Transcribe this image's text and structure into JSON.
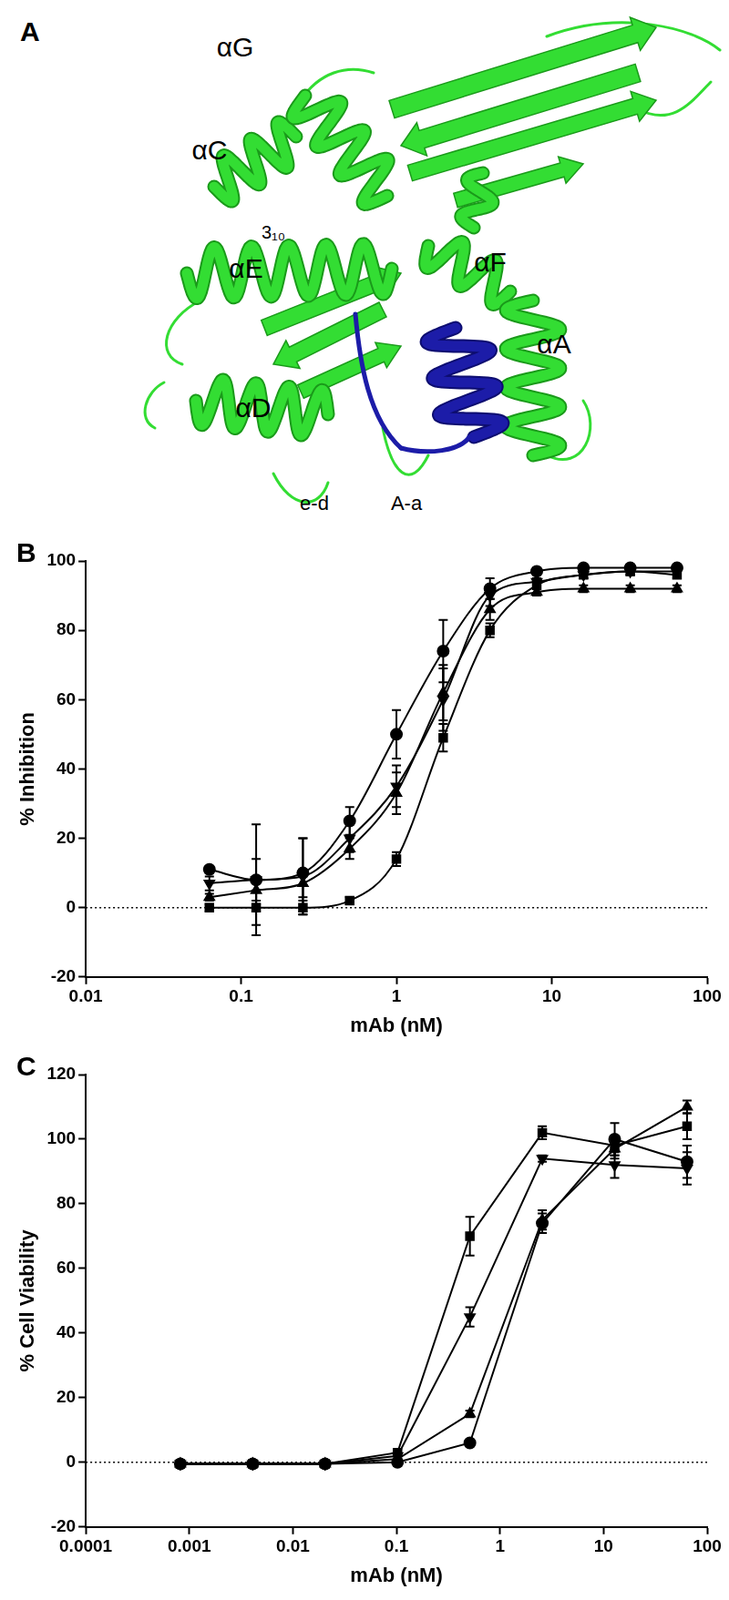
{
  "panel_A": {
    "panel_label": "A",
    "structure_labels": [
      "αC",
      "αG",
      "3₁₀",
      "αE",
      "αF",
      "αA",
      "αD",
      "e-d",
      "A-a"
    ]
  },
  "chart_data": [
    {
      "panel_label": "B",
      "type": "scatter",
      "x_label": "mAb (nM)",
      "y_label": "% Inhibition",
      "log": "x",
      "xlim": [
        0.01,
        100
      ],
      "xticks": [
        0.01,
        0.1,
        1,
        10,
        100
      ],
      "ylim": [
        -20,
        100
      ],
      "yticks": [
        -20,
        0,
        20,
        40,
        60,
        80,
        100
      ],
      "grid": false,
      "hline": 0,
      "x": [
        0.0625,
        0.125,
        0.25,
        0.5,
        1,
        2,
        4,
        8,
        16,
        32,
        64
      ],
      "series": [
        {
          "color": "#000000",
          "marker": "circle",
          "line_style": "smooth",
          "values": [
            11,
            8,
            10,
            25,
            50,
            74,
            92,
            97,
            98,
            98,
            98
          ],
          "errors": [
            1,
            6,
            10,
            4,
            7,
            9,
            3,
            1,
            1,
            1,
            1
          ]
        },
        {
          "color": "#000000",
          "marker": "square",
          "line_style": "smooth",
          "values": [
            0,
            0,
            0,
            2,
            14,
            49,
            80,
            93,
            96,
            97,
            96
          ],
          "errors": [
            1,
            5,
            2,
            1,
            2,
            4,
            2,
            1,
            1,
            1,
            1
          ]
        },
        {
          "color": "#000000",
          "marker": "triangle",
          "line_style": "smooth",
          "values": [
            3,
            5,
            7,
            17,
            33,
            62,
            86,
            91,
            92,
            92,
            92
          ],
          "errors": [
            1,
            4,
            4,
            3,
            6,
            8,
            3,
            1,
            1,
            1,
            1
          ]
        },
        {
          "color": "#000000",
          "marker": "triangle-down",
          "line_style": "smooth",
          "values": [
            7,
            8,
            9,
            20,
            35,
            60,
            90,
            94,
            96,
            97,
            97
          ],
          "errors": [
            2,
            16,
            11,
            4,
            6,
            9,
            3,
            1,
            1,
            1,
            1
          ]
        }
      ]
    },
    {
      "panel_label": "C",
      "type": "scatter",
      "x_label": "mAb (nM)",
      "y_label": "% Cell Viability",
      "log": "x",
      "xlim": [
        0.0001,
        100
      ],
      "xticks": [
        0.0001,
        0.001,
        0.01,
        0.1,
        1,
        10,
        100
      ],
      "ylim": [
        -20,
        120
      ],
      "yticks": [
        -20,
        0,
        20,
        40,
        60,
        80,
        100,
        120
      ],
      "grid": false,
      "hline": 0,
      "x": [
        0.0008192,
        0.004096,
        0.02048,
        0.1024,
        0.512,
        2.56,
        12.8,
        64
      ],
      "series": [
        {
          "color": "#000000",
          "marker": "square",
          "line_style": "solid",
          "values": [
            -0.5,
            -0.5,
            -0.5,
            3,
            70,
            102,
            98,
            104
          ],
          "errors": [
            0,
            0,
            0,
            1,
            6,
            2,
            3,
            4
          ]
        },
        {
          "color": "#000000",
          "marker": "triangle-down",
          "line_style": "solid",
          "values": [
            -0.5,
            -0.5,
            -0.5,
            2,
            45,
            94,
            92,
            91
          ],
          "errors": [
            0,
            0,
            0,
            1,
            3,
            1,
            4,
            5
          ]
        },
        {
          "color": "#000000",
          "marker": "circle",
          "line_style": "solid",
          "values": [
            -0.5,
            -0.5,
            -0.5,
            0,
            6,
            74,
            100,
            93
          ],
          "errors": [
            0,
            0,
            0,
            1,
            1,
            3,
            5,
            5
          ]
        },
        {
          "color": "#000000",
          "marker": "triangle",
          "line_style": "solid",
          "values": [
            -0.5,
            -0.5,
            -0.5,
            1,
            15,
            75,
            97,
            110
          ],
          "errors": [
            0,
            0,
            0,
            1,
            1,
            3,
            3,
            2
          ]
        }
      ]
    }
  ]
}
